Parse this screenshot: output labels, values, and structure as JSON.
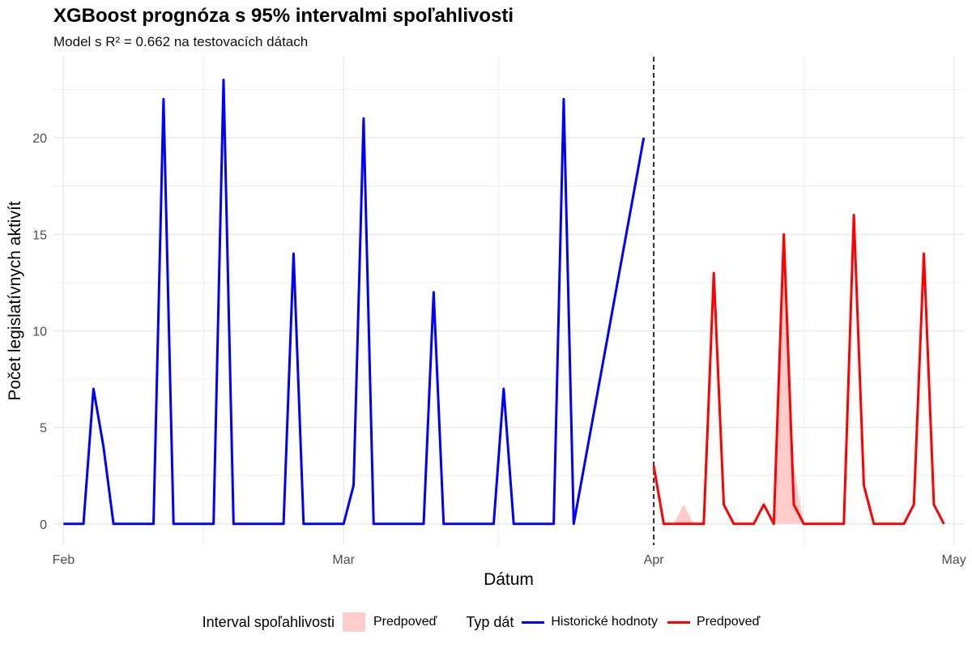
{
  "title": "XGBoost prognóza s 95% intervalmi spoľahlivosti",
  "subtitle": "Model s R² = 0.662 na testovacích dátach",
  "colors": {
    "historical": "#0000ff",
    "forecast": "#ff0000",
    "interval": "#ffcccc",
    "grid": "#ebebeb",
    "vline": "#000000"
  },
  "legend": {
    "interval_title": "Interval spoľahlivosti",
    "interval_item": "Predpoveď",
    "type_title": "Typ dát",
    "type_items": [
      "Historické hodnoty",
      "Predpoveď"
    ]
  },
  "chart_data": {
    "type": "line",
    "title": "XGBoost prognóza s 95% intervalmi spoľahlivosti",
    "subtitle": "Model s R² = 0.662 na testovacích dátach",
    "xlabel": "Dátum",
    "ylabel": "Počet legislatívnych aktivít",
    "x_type": "date",
    "xlim": [
      "2025-01-31",
      "2025-05-02"
    ],
    "ylim": [
      -1.1,
      24.2
    ],
    "x_ticks": [
      {
        "date": "2025-02-01",
        "label": "Feb"
      },
      {
        "date": "2025-03-01",
        "label": "Mar"
      },
      {
        "date": "2025-04-01",
        "label": "Apr"
      },
      {
        "date": "2025-05-01",
        "label": "May"
      }
    ],
    "y_ticks": [
      0,
      5,
      10,
      15,
      20
    ],
    "vline": "2025-04-01",
    "grid": true,
    "legend_position": "bottom",
    "series": [
      {
        "name": "Historické hodnoty",
        "color": "#0000ff",
        "x": [
          "2025-02-01",
          "2025-02-03",
          "2025-02-04",
          "2025-02-05",
          "2025-02-06",
          "2025-02-10",
          "2025-02-11",
          "2025-02-12",
          "2025-02-16",
          "2025-02-17",
          "2025-02-18",
          "2025-02-23",
          "2025-02-24",
          "2025-02-25",
          "2025-03-01",
          "2025-03-02",
          "2025-03-03",
          "2025-03-04",
          "2025-03-09",
          "2025-03-10",
          "2025-03-11",
          "2025-03-16",
          "2025-03-17",
          "2025-03-18",
          "2025-03-22",
          "2025-03-23",
          "2025-03-24",
          "2025-03-31"
        ],
        "y": [
          0,
          0,
          7,
          4,
          0,
          0,
          22,
          0,
          0,
          23,
          0,
          0,
          14,
          0,
          0,
          2,
          21,
          0,
          0,
          12,
          0,
          0,
          7,
          0,
          0,
          22,
          0,
          20
        ]
      },
      {
        "name": "Predpoveď",
        "color": "#ff0000",
        "x": [
          "2025-04-01",
          "2025-04-02",
          "2025-04-03",
          "2025-04-04",
          "2025-04-05",
          "2025-04-06",
          "2025-04-07",
          "2025-04-08",
          "2025-04-09",
          "2025-04-10",
          "2025-04-11",
          "2025-04-12",
          "2025-04-13",
          "2025-04-14",
          "2025-04-15",
          "2025-04-16",
          "2025-04-17",
          "2025-04-18",
          "2025-04-19",
          "2025-04-20",
          "2025-04-21",
          "2025-04-22",
          "2025-04-23",
          "2025-04-24",
          "2025-04-25",
          "2025-04-26",
          "2025-04-27",
          "2025-04-28",
          "2025-04-29",
          "2025-04-30"
        ],
        "y": [
          3,
          0,
          0,
          0,
          0,
          0,
          13,
          1,
          0,
          0,
          0,
          1,
          0,
          15,
          1,
          0,
          0,
          0,
          0,
          0,
          16,
          2,
          0,
          0,
          0,
          0,
          1,
          14,
          1,
          0
        ]
      }
    ],
    "interval": {
      "name": "Predpoveď",
      "color": "#ffcccc",
      "x": [
        "2025-04-01",
        "2025-04-02",
        "2025-04-03",
        "2025-04-04",
        "2025-04-05",
        "2025-04-06",
        "2025-04-13",
        "2025-04-14",
        "2025-04-15",
        "2025-04-16",
        "2025-04-30"
      ],
      "lower": [
        3,
        0,
        0,
        0,
        0,
        0,
        0,
        0,
        0,
        0,
        0
      ],
      "upper": [
        3,
        0,
        0,
        1,
        0,
        0,
        0,
        15,
        3,
        0,
        0
      ]
    }
  }
}
